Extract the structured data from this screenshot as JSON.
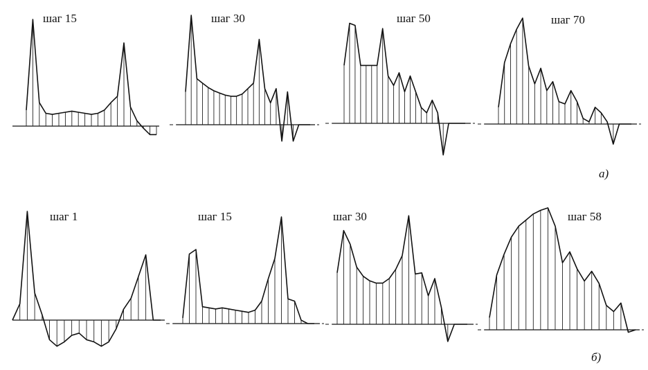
{
  "chart_data": [
    {
      "type": "line",
      "group": "а)",
      "title": "шаг 15",
      "x": [
        0,
        1,
        2,
        3,
        4,
        5,
        6,
        7,
        8,
        9,
        10,
        11,
        12,
        13,
        14,
        15,
        16,
        17,
        18,
        19,
        20
      ],
      "y": [
        0.15,
        1.0,
        0.22,
        0.12,
        0.11,
        0.12,
        0.13,
        0.14,
        0.13,
        0.12,
        0.11,
        0.12,
        0.15,
        0.22,
        0.28,
        0.78,
        0.18,
        0.05,
        -0.02,
        -0.08,
        -0.08
      ]
    },
    {
      "type": "line",
      "group": "а)",
      "title": "шаг 30",
      "x": [
        0,
        1,
        2,
        3,
        4,
        5,
        6,
        7,
        8,
        9,
        10,
        11,
        12,
        13,
        14,
        15,
        16,
        17,
        18,
        19,
        20,
        21,
        22
      ],
      "y": [
        0.3,
        1.0,
        0.42,
        0.38,
        0.34,
        0.31,
        0.29,
        0.27,
        0.26,
        0.26,
        0.28,
        0.33,
        0.38,
        0.78,
        0.33,
        0.2,
        0.33,
        -0.15,
        0.3,
        -0.15,
        0,
        0,
        0
      ]
    },
    {
      "type": "line",
      "group": "а)",
      "title": "шаг 50",
      "x": [
        0,
        1,
        2,
        3,
        4,
        5,
        6,
        7,
        8,
        9,
        10,
        11,
        12,
        13,
        14,
        15,
        16,
        17,
        18,
        19,
        20,
        21,
        22
      ],
      "y": [
        0.55,
        0.95,
        0.93,
        0.55,
        0.55,
        0.55,
        0.55,
        0.9,
        0.45,
        0.36,
        0.48,
        0.3,
        0.45,
        0.3,
        0.15,
        0.1,
        0.22,
        0.1,
        -0.3,
        0,
        0,
        0,
        0
      ]
    },
    {
      "type": "line",
      "group": "а)",
      "title": "шаг 70",
      "x": [
        0,
        1,
        2,
        3,
        4,
        5,
        6,
        7,
        8,
        9,
        10,
        11,
        12,
        13,
        14,
        15,
        16,
        17,
        18,
        19,
        20,
        21,
        22
      ],
      "y": [
        0.15,
        0.55,
        0.72,
        0.85,
        0.95,
        0.52,
        0.36,
        0.5,
        0.3,
        0.38,
        0.2,
        0.18,
        0.3,
        0.2,
        0.05,
        0.02,
        0.15,
        0.1,
        0.02,
        -0.18,
        0,
        0,
        0
      ]
    },
    {
      "type": "line",
      "group": "б)",
      "title": "шаг 1",
      "x": [
        0,
        1,
        2,
        3,
        4,
        5,
        6,
        7,
        8,
        9,
        10,
        11,
        12,
        13,
        14,
        15,
        16,
        17,
        18,
        19,
        20
      ],
      "y": [
        0,
        0.15,
        1.0,
        0.25,
        0.05,
        -0.18,
        -0.24,
        -0.2,
        -0.14,
        -0.12,
        -0.18,
        -0.2,
        -0.24,
        -0.2,
        -0.08,
        0.1,
        0.2,
        0.4,
        0.6,
        0,
        0
      ]
    },
    {
      "type": "line",
      "group": "б)",
      "title": "шаг 15",
      "x": [
        0,
        1,
        2,
        3,
        4,
        5,
        6,
        7,
        8,
        9,
        10,
        11,
        12,
        13,
        14,
        15,
        16,
        17,
        18,
        19,
        20
      ],
      "y": [
        0.05,
        0.62,
        0.66,
        0.15,
        0.14,
        0.13,
        0.14,
        0.13,
        0.12,
        0.11,
        0.1,
        0.12,
        0.2,
        0.4,
        0.58,
        0.95,
        0.22,
        0.2,
        0.03,
        0,
        0
      ]
    },
    {
      "type": "line",
      "group": "б)",
      "title": "шаг 30",
      "x": [
        0,
        1,
        2,
        3,
        4,
        5,
        6,
        7,
        8,
        9,
        10,
        11,
        12,
        13,
        14,
        15,
        16,
        17,
        18,
        19,
        20
      ],
      "y": [
        0.45,
        0.82,
        0.7,
        0.5,
        0.42,
        0.38,
        0.36,
        0.36,
        0.4,
        0.48,
        0.6,
        0.95,
        0.44,
        0.45,
        0.25,
        0.4,
        0.15,
        -0.15,
        0,
        0,
        0
      ]
    },
    {
      "type": "line",
      "group": "б)",
      "title": "шаг 58",
      "x": [
        0,
        1,
        2,
        3,
        4,
        5,
        6,
        7,
        8,
        9,
        10,
        11,
        12,
        13,
        14,
        15,
        16,
        17,
        18,
        19,
        20
      ],
      "y": [
        0.1,
        0.45,
        0.62,
        0.76,
        0.85,
        0.9,
        0.95,
        0.98,
        1.0,
        0.85,
        0.55,
        0.64,
        0.5,
        0.4,
        0.48,
        0.38,
        0.2,
        0.15,
        0.22,
        -0.02,
        0
      ]
    }
  ],
  "group_labels": [
    "а)",
    "б)"
  ]
}
